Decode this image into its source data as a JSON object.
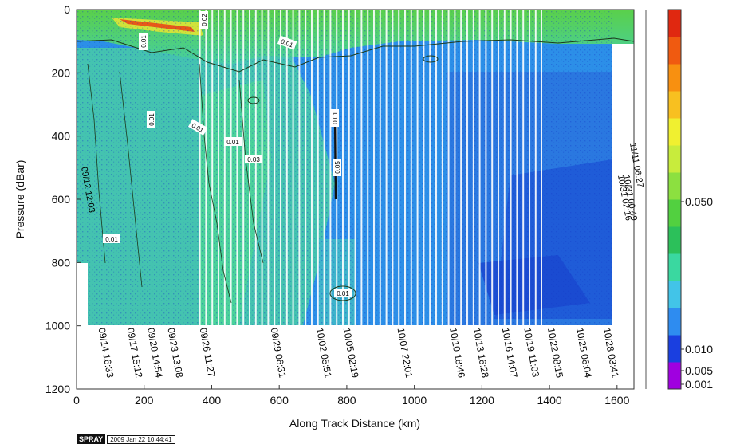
{
  "chart_data": {
    "type": "heatmap",
    "title": "",
    "xlabel": "Along Track Distance (km)",
    "ylabel": "Pressure (dBar)",
    "xlim": [
      0,
      1650
    ],
    "ylim": [
      1200,
      0
    ],
    "x_ticks": [
      "0",
      "200",
      "400",
      "600",
      "800",
      "1000",
      "1200",
      "1400",
      "1600"
    ],
    "y_ticks": [
      "0",
      "200",
      "400",
      "600",
      "800",
      "1000",
      "1200"
    ],
    "colorbar": {
      "tick_labels": [
        "0.050",
        "0.010",
        "0.005",
        "0.001"
      ],
      "tick_values": [
        0.05,
        0.01,
        0.005,
        0.001
      ],
      "colors": [
        "#a000e0",
        "#1a3fe0",
        "#2e8cf0",
        "#42c4e8",
        "#3ad8a0",
        "#2cc05a",
        "#52d040",
        "#8ce040",
        "#c8ec3c",
        "#f0f030",
        "#f8c020",
        "#f89010",
        "#f05a10",
        "#e02810"
      ]
    },
    "contour_labels": [
      "0.01",
      "0.01",
      "0.01",
      "0.01",
      "0.02",
      "0.01",
      "0.01",
      "0.05",
      "0.01",
      "0.03",
      "0.01"
    ],
    "profile_labels": [
      {
        "x": 65,
        "text": "09/14 16:33"
      },
      {
        "x": 150,
        "text": "09/17 15:12"
      },
      {
        "x": 210,
        "text": "09/20 14:54"
      },
      {
        "x": 270,
        "text": "09/23 13:08"
      },
      {
        "x": 365,
        "text": "09/26 11:27"
      },
      {
        "x": 575,
        "text": "09/29 06:31"
      },
      {
        "x": 710,
        "text": "10/02 05:51"
      },
      {
        "x": 790,
        "text": "10/05 02:19"
      },
      {
        "x": 950,
        "text": "10/07 22:01"
      },
      {
        "x": 1105,
        "text": "10/10 18:46"
      },
      {
        "x": 1175,
        "text": "10/13 16:28"
      },
      {
        "x": 1260,
        "text": "10/16 14:07"
      },
      {
        "x": 1325,
        "text": "10/19 11:03"
      },
      {
        "x": 1395,
        "text": "10/22 08:15"
      },
      {
        "x": 1480,
        "text": "10/25 06:04"
      },
      {
        "x": 1560,
        "text": "10/28 03:41"
      }
    ],
    "side_labels": [
      "09/12 12:03",
      "11/11 06:27",
      "10/31 02:16",
      "10/31 00:49"
    ],
    "stamp": {
      "logo": "SPRAY",
      "date": "2009 Jan 22 10:44:41"
    }
  }
}
